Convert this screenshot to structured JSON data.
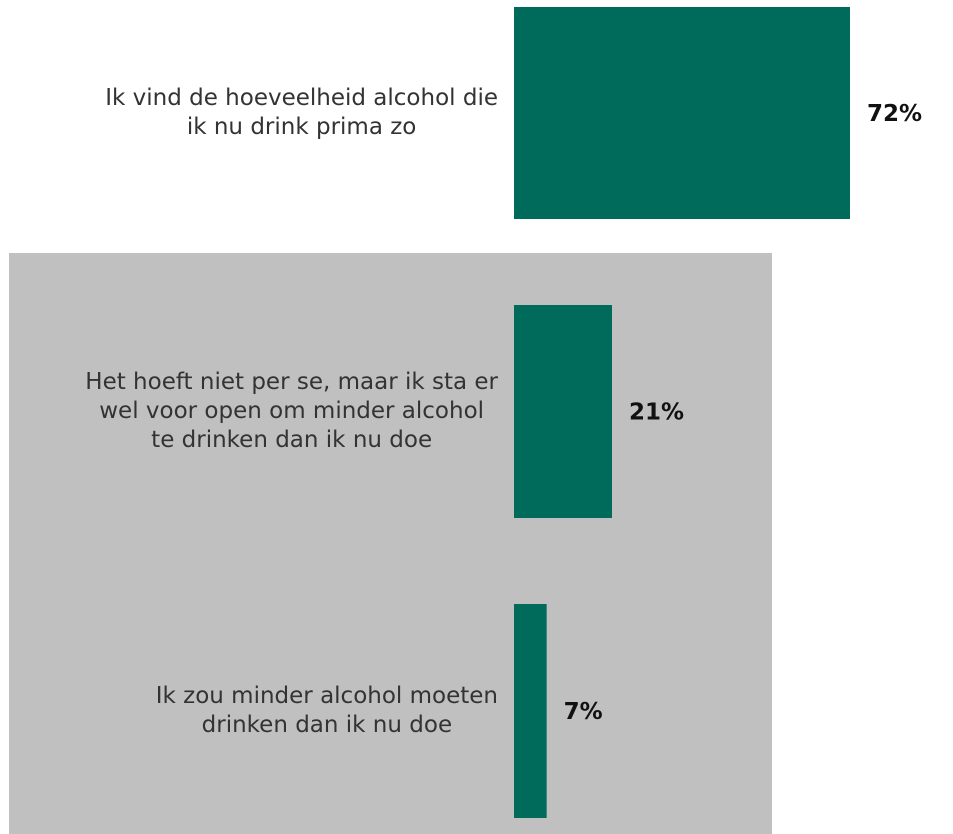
{
  "chart_data": {
    "type": "bar",
    "orientation": "horizontal",
    "categories": [
      "Ik vind de hoeveelheid alcohol die ik nu drink prima zo",
      "Het hoeft niet per se, maar ik sta er wel voor open om minder alcohol te drinken dan ik nu doe",
      "Ik zou minder alcohol moeten drinken dan ik nu doe"
    ],
    "category_lines": [
      [
        "Ik vind de hoeveelheid alcohol die",
        "ik nu drink prima zo"
      ],
      [
        "Het hoeft niet per se, maar ik sta er",
        "wel voor open om minder alcohol",
        "te drinken dan ik nu doe"
      ],
      [
        "Ik zou minder alcohol moeten",
        "drinken dan ik nu doe"
      ]
    ],
    "values": [
      72,
      21,
      7
    ],
    "value_labels": [
      "72%",
      "21%",
      "7%"
    ],
    "highlighted_categories": [
      1,
      2
    ],
    "xlim": [
      0,
      100
    ],
    "grid": false,
    "legend": "none"
  },
  "colors": {
    "bar": "#006b5a",
    "highlight_background": "#c0c0c0",
    "label_text": "#333333",
    "value_text": "#111111"
  }
}
